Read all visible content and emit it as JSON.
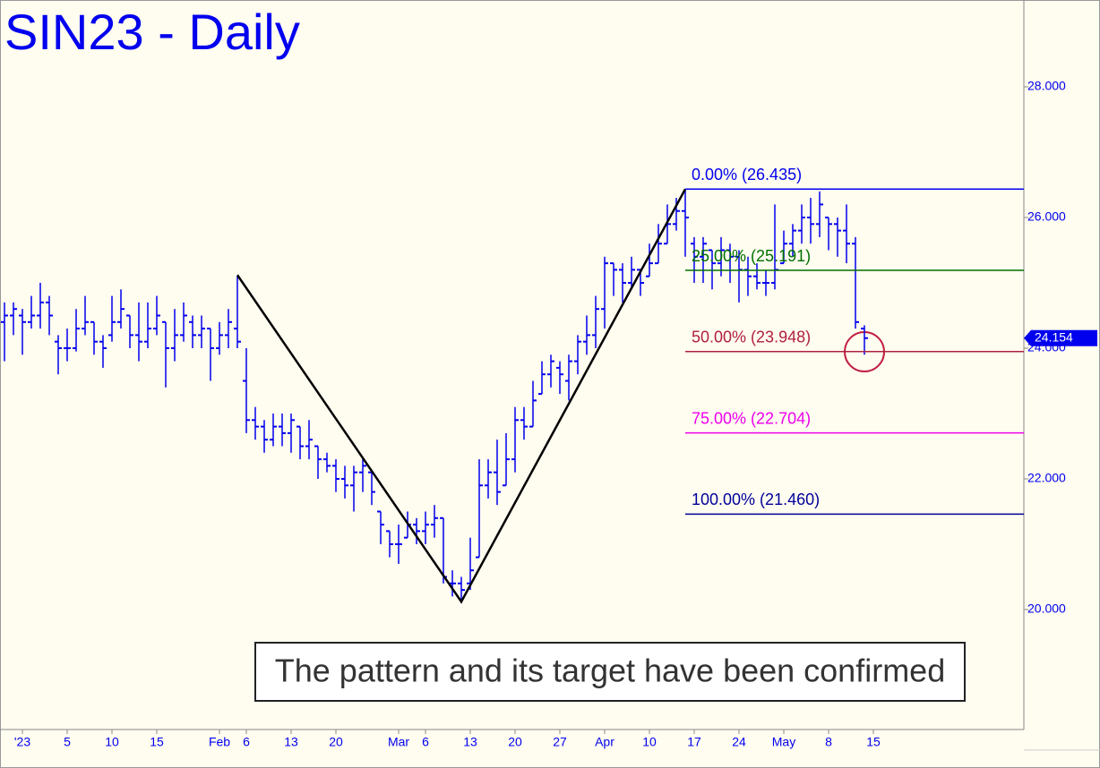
{
  "chart_data": {
    "type": "ohlc",
    "title": "SIN23 - Daily",
    "annotation": "The pattern and its target have been confirmed",
    "color": "#0000ee",
    "xlim": [
      -2.5,
      111.8
    ],
    "ylim": [
      18.164,
      29.329
    ],
    "xticks": [
      {
        "value": 0,
        "label": "'23"
      },
      5,
      10,
      15,
      {
        "value": 22,
        "label": "Feb"
      },
      {
        "value": 25,
        "label": "6"
      },
      {
        "value": 30,
        "label": "13"
      },
      {
        "value": 35,
        "label": "20"
      },
      {
        "value": 42,
        "label": "Mar"
      },
      {
        "value": 45,
        "label": "6"
      },
      {
        "value": 50,
        "label": "13"
      },
      {
        "value": 55,
        "label": "20"
      },
      {
        "value": 60,
        "label": "27"
      },
      {
        "value": 65,
        "label": "Apr"
      },
      {
        "value": 70,
        "label": "10"
      },
      {
        "value": 75,
        "label": "17"
      },
      {
        "value": 80,
        "label": "24"
      },
      {
        "value": 85,
        "label": "May"
      },
      {
        "value": 90,
        "label": "8"
      },
      {
        "value": 95,
        "label": "15"
      }
    ],
    "yticks": [
      {
        "value": 20,
        "label": "20.000"
      },
      {
        "value": 22,
        "label": "22.000"
      },
      {
        "value": 24,
        "label": "24.000"
      },
      {
        "value": 26,
        "label": "26.000"
      },
      {
        "value": 28,
        "label": "28.000"
      }
    ],
    "last_price": 24.154,
    "x": [
      -2,
      -1,
      0,
      1,
      2,
      3,
      4,
      5,
      6,
      7,
      8,
      9,
      10,
      11,
      12,
      13,
      14,
      15,
      16,
      17,
      18,
      19,
      20,
      21,
      22,
      23,
      24,
      25,
      26,
      27,
      28,
      29,
      30,
      31,
      32,
      33,
      34,
      35,
      36,
      37,
      38,
      39,
      40,
      41,
      42,
      43,
      44,
      45,
      46,
      47,
      48,
      49,
      50,
      51,
      52,
      53,
      54,
      55,
      56,
      57,
      58,
      59,
      60,
      61,
      62,
      63,
      64,
      65,
      66,
      67,
      68,
      69,
      70,
      71,
      72,
      73,
      74,
      75,
      76,
      77,
      78,
      79,
      80,
      81,
      82,
      83,
      84,
      85,
      86,
      87,
      88,
      89,
      90,
      91,
      92,
      93,
      94
    ],
    "bars": [
      [
        24.4,
        24.7,
        23.8,
        24.5
      ],
      [
        24.5,
        24.7,
        24.2,
        24.6
      ],
      [
        24.5,
        24.6,
        23.9,
        24.4
      ],
      [
        24.4,
        24.8,
        24.3,
        24.5
      ],
      [
        24.5,
        25.0,
        24.3,
        24.7
      ],
      [
        24.7,
        24.8,
        24.2,
        24.5
      ],
      [
        24.1,
        24.2,
        23.6,
        24.0
      ],
      [
        24.0,
        24.3,
        23.8,
        24.0
      ],
      [
        24.0,
        24.6,
        23.95,
        24.3
      ],
      [
        24.3,
        24.8,
        24.2,
        24.4
      ],
      [
        24.4,
        24.4,
        23.9,
        24.1
      ],
      [
        24.1,
        24.2,
        23.7,
        24.0
      ],
      [
        24.2,
        24.8,
        24.1,
        24.4
      ],
      [
        24.4,
        24.9,
        24.3,
        24.6
      ],
      [
        24.5,
        24.5,
        24.0,
        24.2
      ],
      [
        24.2,
        24.7,
        23.8,
        24.1
      ],
      [
        24.1,
        24.7,
        24.0,
        24.3
      ],
      [
        24.3,
        24.8,
        24.2,
        24.5
      ],
      [
        24.4,
        24.4,
        23.4,
        24.0
      ],
      [
        24.0,
        24.6,
        23.8,
        24.2
      ],
      [
        24.2,
        24.7,
        24.1,
        24.5
      ],
      [
        24.4,
        24.5,
        24.0,
        24.2
      ],
      [
        24.2,
        24.5,
        24.0,
        24.3
      ],
      [
        24.3,
        24.3,
        23.5,
        24.0
      ],
      [
        24.0,
        24.4,
        23.9,
        24.2
      ],
      [
        24.2,
        24.6,
        24.0,
        24.4
      ],
      [
        24.3,
        25.1,
        24.0,
        24.1
      ],
      [
        23.5,
        24.0,
        22.7,
        22.9
      ],
      [
        22.9,
        23.1,
        22.6,
        22.8
      ],
      [
        22.8,
        22.9,
        22.4,
        22.6
      ],
      [
        22.6,
        23.0,
        22.5,
        22.8
      ],
      [
        22.8,
        23.0,
        22.5,
        22.7
      ],
      [
        22.7,
        23.0,
        22.4,
        22.9
      ],
      [
        22.8,
        22.8,
        22.3,
        22.5
      ],
      [
        22.5,
        22.9,
        22.3,
        22.6
      ],
      [
        22.5,
        22.5,
        22.0,
        22.3
      ],
      [
        22.3,
        22.4,
        22.1,
        22.2
      ],
      [
        22.2,
        22.3,
        21.8,
        22.0
      ],
      [
        22.0,
        22.2,
        21.7,
        21.9
      ],
      [
        21.9,
        22.2,
        21.5,
        22.1
      ],
      [
        22.1,
        22.3,
        21.8,
        22.2
      ],
      [
        22.1,
        22.1,
        21.6,
        21.8
      ],
      [
        21.5,
        21.5,
        21.0,
        21.3
      ],
      [
        21.2,
        21.2,
        20.8,
        21.0
      ],
      [
        21.0,
        21.3,
        20.7,
        21.0
      ],
      [
        21.1,
        21.5,
        21.1,
        21.3
      ],
      [
        21.3,
        21.4,
        21.0,
        21.2
      ],
      [
        21.2,
        21.5,
        21.0,
        21.3
      ],
      [
        21.3,
        21.6,
        21.1,
        21.4
      ],
      [
        21.4,
        21.4,
        20.4,
        20.5
      ],
      [
        20.4,
        20.6,
        20.2,
        20.4
      ],
      [
        20.4,
        20.5,
        20.1,
        20.3
      ],
      [
        20.4,
        21.1,
        20.3,
        20.6
      ],
      [
        20.8,
        22.3,
        20.8,
        21.9
      ],
      [
        21.9,
        22.3,
        21.7,
        22.1
      ],
      [
        22.1,
        22.6,
        21.6,
        21.8
      ],
      [
        21.9,
        22.7,
        21.9,
        22.3
      ],
      [
        22.3,
        23.1,
        22.1,
        22.9
      ],
      [
        22.9,
        23.1,
        22.6,
        22.8
      ],
      [
        22.8,
        23.5,
        22.8,
        23.2
      ],
      [
        23.3,
        23.8,
        23.3,
        23.6
      ],
      [
        23.6,
        23.9,
        23.4,
        23.8
      ],
      [
        23.7,
        23.8,
        23.3,
        23.6
      ],
      [
        23.5,
        23.9,
        23.2,
        23.8
      ],
      [
        23.8,
        24.2,
        23.6,
        24.1
      ],
      [
        24.1,
        24.5,
        23.9,
        24.2
      ],
      [
        24.2,
        24.8,
        24.0,
        24.6
      ],
      [
        24.6,
        25.4,
        24.3,
        25.3
      ],
      [
        25.3,
        25.3,
        24.8,
        25.2
      ],
      [
        25.2,
        25.3,
        24.7,
        25.0
      ],
      [
        25.0,
        25.4,
        24.9,
        25.2
      ],
      [
        25.2,
        25.2,
        24.8,
        25.0
      ],
      [
        25.1,
        25.6,
        25.1,
        25.3
      ],
      [
        25.3,
        25.9,
        25.3,
        25.6
      ],
      [
        25.6,
        26.2,
        25.6,
        25.9
      ],
      [
        25.9,
        26.3,
        25.8,
        26.1
      ],
      [
        26.1,
        26.435,
        25.4,
        26.0
      ],
      [
        25.6,
        25.7,
        25.0,
        25.4
      ],
      [
        25.4,
        25.7,
        25.0,
        25.6
      ],
      [
        25.5,
        25.5,
        24.9,
        25.3
      ],
      [
        25.3,
        25.7,
        25.1,
        25.5
      ],
      [
        25.5,
        25.6,
        25.0,
        25.4
      ],
      [
        25.4,
        25.5,
        24.7,
        25.2
      ],
      [
        25.2,
        25.4,
        24.8,
        25.1
      ],
      [
        25.1,
        25.3,
        24.9,
        25.0
      ],
      [
        25.0,
        25.2,
        24.8,
        25.0
      ],
      [
        25.0,
        26.2,
        24.9,
        25.2
      ],
      [
        25.3,
        25.8,
        25.3,
        25.6
      ],
      [
        25.6,
        25.9,
        25.4,
        25.8
      ],
      [
        25.8,
        26.2,
        25.6,
        26.0
      ],
      [
        26.0,
        26.3,
        25.6,
        25.9
      ],
      [
        25.9,
        26.4,
        25.7,
        26.2
      ],
      [
        26.0,
        26.0,
        25.5,
        25.9
      ],
      [
        25.9,
        26.0,
        25.4,
        25.8
      ],
      [
        25.8,
        26.2,
        25.3,
        25.6
      ],
      [
        25.6,
        25.7,
        24.3,
        24.4
      ],
      [
        24.3,
        24.35,
        23.9,
        24.154
      ]
    ],
    "pattern": {
      "x": [
        24,
        49,
        74
      ],
      "y": [
        25.12,
        20.12,
        26.435
      ]
    },
    "levels": [
      {
        "label": "0.00% (26.435)",
        "value": 26.435,
        "color": "#0000ee"
      },
      {
        "label": "25.00% (25.191)",
        "value": 25.191,
        "color": "#007000"
      },
      {
        "label": "50.00% (23.948)",
        "value": 23.948,
        "color": "#b02040"
      },
      {
        "label": "75.00% (22.704)",
        "value": 22.704,
        "color": "#ee00ee"
      },
      {
        "label": "100.00% (21.460)",
        "value": 21.46,
        "color": "#000099"
      }
    ]
  }
}
